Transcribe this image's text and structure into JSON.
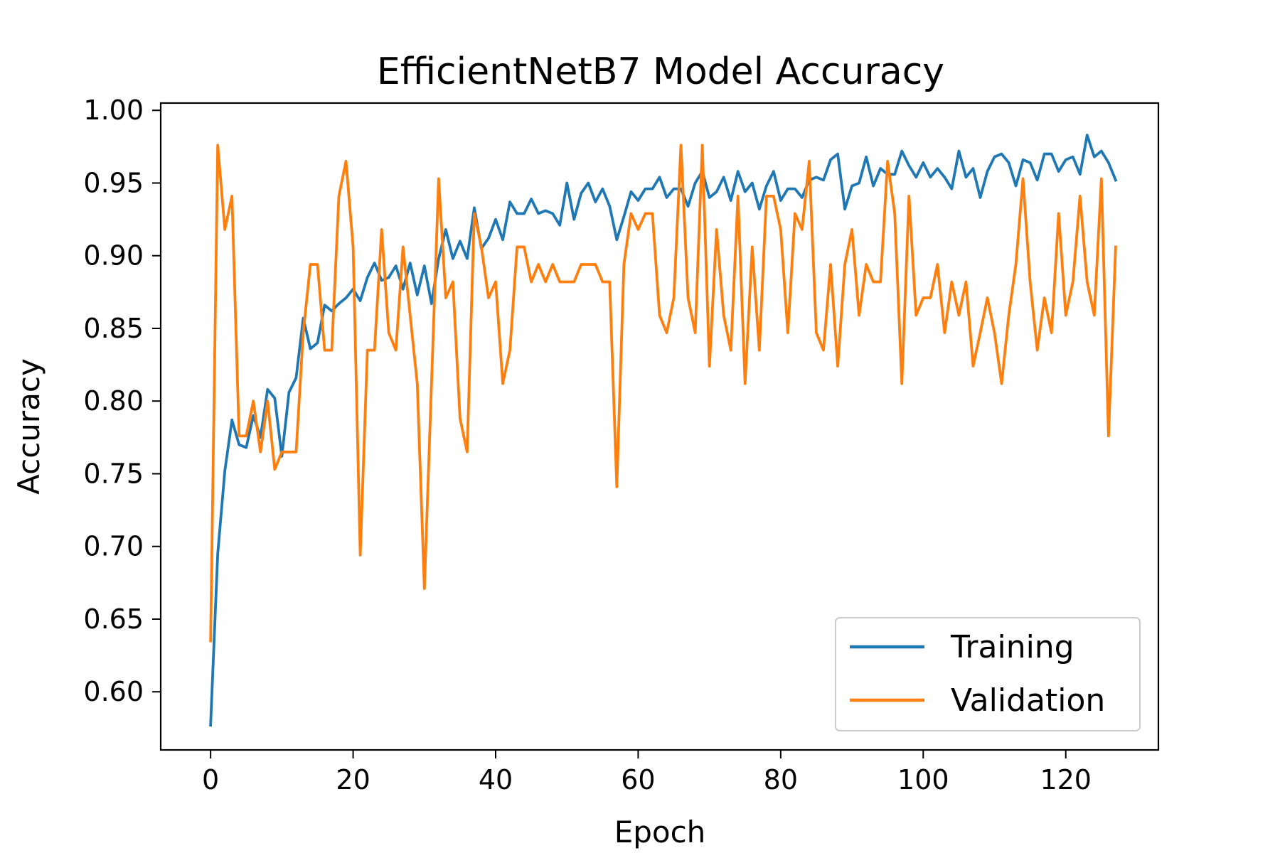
{
  "chart_data": {
    "type": "line",
    "title": "EfficientNetB7 Model Accuracy",
    "xlabel": "Epoch",
    "ylabel": "Accuracy",
    "xlim": [
      -7,
      133
    ],
    "ylim": [
      0.56,
      1.005
    ],
    "xticks": [
      0,
      20,
      40,
      60,
      80,
      100,
      120
    ],
    "yticks": [
      0.6,
      0.65,
      0.7,
      0.75,
      0.8,
      0.85,
      0.9,
      0.95,
      1.0
    ],
    "grid": false,
    "legend_position": "lower-right",
    "series": [
      {
        "name": "Training",
        "color": "#1f77b4",
        "x_start": 0,
        "values": [
          0.577,
          0.695,
          0.752,
          0.787,
          0.77,
          0.768,
          0.79,
          0.775,
          0.808,
          0.802,
          0.762,
          0.806,
          0.816,
          0.857,
          0.836,
          0.84,
          0.866,
          0.862,
          0.867,
          0.871,
          0.877,
          0.869,
          0.885,
          0.895,
          0.883,
          0.885,
          0.893,
          0.877,
          0.895,
          0.873,
          0.893,
          0.867,
          0.898,
          0.918,
          0.898,
          0.91,
          0.898,
          0.933,
          0.905,
          0.912,
          0.925,
          0.911,
          0.937,
          0.929,
          0.929,
          0.939,
          0.929,
          0.931,
          0.929,
          0.921,
          0.95,
          0.925,
          0.943,
          0.95,
          0.937,
          0.946,
          0.934,
          0.911,
          0.927,
          0.944,
          0.938,
          0.946,
          0.946,
          0.954,
          0.94,
          0.946,
          0.946,
          0.934,
          0.95,
          0.958,
          0.94,
          0.944,
          0.954,
          0.938,
          0.958,
          0.944,
          0.95,
          0.932,
          0.948,
          0.958,
          0.938,
          0.946,
          0.946,
          0.94,
          0.952,
          0.954,
          0.952,
          0.966,
          0.97,
          0.932,
          0.948,
          0.95,
          0.968,
          0.948,
          0.96,
          0.956,
          0.956,
          0.972,
          0.962,
          0.954,
          0.964,
          0.954,
          0.96,
          0.954,
          0.946,
          0.972,
          0.954,
          0.96,
          0.94,
          0.958,
          0.968,
          0.97,
          0.964,
          0.948,
          0.966,
          0.964,
          0.952,
          0.97,
          0.97,
          0.958,
          0.966,
          0.968,
          0.956,
          0.983,
          0.968,
          0.972,
          0.964,
          0.952
        ]
      },
      {
        "name": "Validation",
        "color": "#ff7f0e",
        "x_start": 0,
        "values": [
          0.635,
          0.976,
          0.918,
          0.941,
          0.776,
          0.776,
          0.8,
          0.765,
          0.8,
          0.753,
          0.765,
          0.765,
          0.765,
          0.847,
          0.894,
          0.894,
          0.835,
          0.835,
          0.941,
          0.965,
          0.906,
          0.694,
          0.835,
          0.835,
          0.918,
          0.847,
          0.835,
          0.906,
          0.859,
          0.812,
          0.671,
          0.812,
          0.953,
          0.871,
          0.882,
          0.788,
          0.765,
          0.929,
          0.906,
          0.871,
          0.882,
          0.812,
          0.835,
          0.906,
          0.906,
          0.882,
          0.894,
          0.882,
          0.894,
          0.882,
          0.882,
          0.882,
          0.894,
          0.894,
          0.894,
          0.882,
          0.882,
          0.741,
          0.894,
          0.929,
          0.918,
          0.929,
          0.929,
          0.859,
          0.847,
          0.871,
          0.976,
          0.871,
          0.847,
          0.976,
          0.824,
          0.918,
          0.859,
          0.835,
          0.941,
          0.812,
          0.906,
          0.835,
          0.941,
          0.941,
          0.918,
          0.847,
          0.929,
          0.918,
          0.965,
          0.847,
          0.835,
          0.894,
          0.824,
          0.894,
          0.918,
          0.859,
          0.894,
          0.882,
          0.882,
          0.965,
          0.929,
          0.812,
          0.941,
          0.859,
          0.871,
          0.871,
          0.894,
          0.847,
          0.882,
          0.859,
          0.882,
          0.824,
          0.847,
          0.871,
          0.847,
          0.812,
          0.859,
          0.894,
          0.953,
          0.882,
          0.835,
          0.871,
          0.847,
          0.929,
          0.859,
          0.882,
          0.941,
          0.882,
          0.859,
          0.953,
          0.776,
          0.906
        ]
      }
    ]
  }
}
